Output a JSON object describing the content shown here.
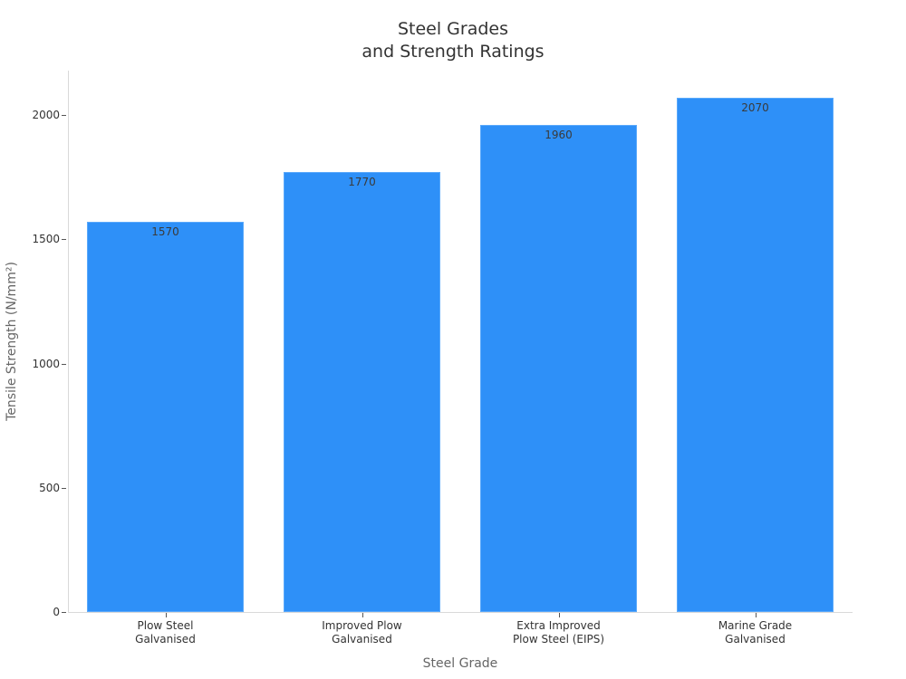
{
  "chart_data": {
    "type": "bar",
    "title": "Steel Grades\nand Strength Ratings",
    "title_lines": [
      "Steel Grades",
      "and Strength Ratings"
    ],
    "xlabel": "Steel Grade",
    "ylabel": "Tensile Strength (N/mm²)",
    "categories": [
      "Plow Steel Galvanised",
      "Improved Plow Galvanised",
      "Extra Improved Plow Steel (EIPS)",
      "Marine Grade Galvanised"
    ],
    "category_lines": [
      [
        "Plow Steel",
        "Galvanised"
      ],
      [
        "Improved Plow",
        "Galvanised"
      ],
      [
        "Extra Improved",
        "Plow Steel (EIPS)"
      ],
      [
        "Marine Grade",
        "Galvanised"
      ]
    ],
    "values": [
      1570,
      1770,
      1960,
      2070
    ],
    "data_labels": [
      "1570",
      "1770",
      "1960",
      "2070"
    ],
    "yticks": [
      0,
      500,
      1000,
      1500,
      2000
    ],
    "ytick_labels": [
      "0",
      "500",
      "1000",
      "1500",
      "2000"
    ],
    "ylim": [
      0,
      2180
    ],
    "grid": false,
    "legend": null,
    "bar_color": "#2e90f8"
  }
}
